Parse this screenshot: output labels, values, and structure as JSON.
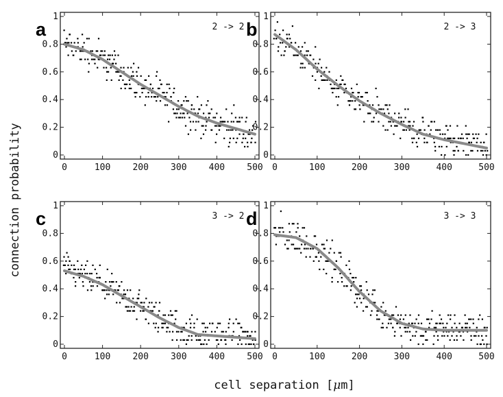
{
  "figure": {
    "ylabel": "connection probability",
    "xlabel_prefix": "cell separation [",
    "xlabel_mu": "μ",
    "xlabel_suffix": "m]"
  },
  "chart_data": [
    {
      "type": "scatter",
      "panel": "a",
      "label": "2 -> 2",
      "xlim": [
        0,
        500
      ],
      "ylim": [
        0,
        1
      ],
      "xticks": [
        "0",
        "100",
        "200",
        "300",
        "400",
        "500"
      ],
      "yticks": [
        "0",
        "0.2",
        "0.4",
        "0.6",
        "0.8",
        "1"
      ],
      "fit": {
        "x": [
          0,
          50,
          100,
          150,
          200,
          250,
          300,
          350,
          400,
          450,
          500
        ],
        "y": [
          0.8,
          0.76,
          0.69,
          0.6,
          0.51,
          0.43,
          0.35,
          0.28,
          0.23,
          0.19,
          0.15
        ]
      },
      "scatter_spread": 0.08
    },
    {
      "type": "scatter",
      "panel": "b",
      "label": "2 -> 3",
      "xlim": [
        0,
        500
      ],
      "ylim": [
        0,
        1
      ],
      "xticks": [
        "0",
        "100",
        "200",
        "300",
        "400",
        "500"
      ],
      "yticks": [
        "0",
        "0.2",
        "0.4",
        "0.6",
        "0.8",
        "1"
      ],
      "fit": {
        "x": [
          0,
          50,
          100,
          150,
          200,
          250,
          300,
          350,
          400,
          450,
          500
        ],
        "y": [
          0.87,
          0.76,
          0.62,
          0.5,
          0.39,
          0.3,
          0.22,
          0.15,
          0.11,
          0.08,
          0.05
        ]
      },
      "scatter_spread": 0.08
    },
    {
      "type": "scatter",
      "panel": "c",
      "label": "3 -> 2",
      "xlim": [
        0,
        500
      ],
      "ylim": [
        0,
        1
      ],
      "xticks": [
        "0",
        "100",
        "200",
        "300",
        "400",
        "500"
      ],
      "yticks": [
        "0",
        "0.2",
        "0.4",
        "0.6",
        "0.8",
        "1"
      ],
      "fit": {
        "x": [
          0,
          50,
          100,
          150,
          200,
          250,
          300,
          350,
          400,
          450,
          500
        ],
        "y": [
          0.53,
          0.49,
          0.43,
          0.35,
          0.27,
          0.19,
          0.12,
          0.07,
          0.06,
          0.05,
          0.04
        ]
      },
      "scatter_spread": 0.07
    },
    {
      "type": "scatter",
      "panel": "d",
      "label": "3 -> 3",
      "xlim": [
        0,
        500
      ],
      "ylim": [
        0,
        1
      ],
      "xticks": [
        "0",
        "100",
        "200",
        "300",
        "400",
        "500"
      ],
      "yticks": [
        "0",
        "0.2",
        "0.4",
        "0.6",
        "0.8",
        "1"
      ],
      "fit": {
        "x": [
          0,
          50,
          100,
          150,
          200,
          250,
          300,
          350,
          400,
          450,
          500
        ],
        "y": [
          0.79,
          0.77,
          0.69,
          0.55,
          0.38,
          0.24,
          0.15,
          0.11,
          0.1,
          0.1,
          0.1
        ]
      },
      "scatter_spread": 0.08
    }
  ]
}
